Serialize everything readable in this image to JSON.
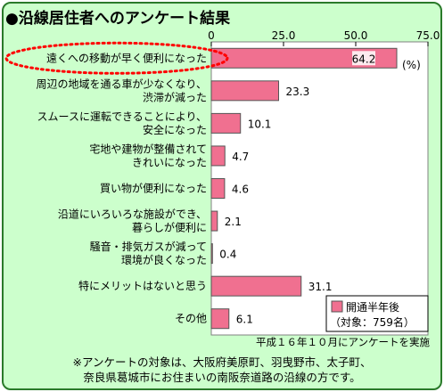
{
  "title": "●沿線居住者へのアンケート結果",
  "chart_data": {
    "type": "bar",
    "orientation": "horizontal",
    "categories": [
      [
        "遠くへの移動が早く便利になった"
      ],
      [
        "周辺の地域を通る車が少なくなり、",
        "渋滞が減った"
      ],
      [
        "スムースに運転できることにより、",
        "安全になった"
      ],
      [
        "宅地や建物が整備されて",
        "きれいになった"
      ],
      [
        "買い物が便利になった"
      ],
      [
        "沿道にいろいろな施設ができ、",
        "暮らしが便利に"
      ],
      [
        "騒音・排気ガスが減って",
        "環境が良くなった"
      ],
      [
        "特にメリットはないと思う"
      ],
      [
        "その他"
      ]
    ],
    "series": [
      {
        "name": "開通半年後",
        "values": [
          64.2,
          23.3,
          10.1,
          4.7,
          4.6,
          2.1,
          0.4,
          31.1,
          6.1
        ]
      }
    ],
    "value_labels": [
      "64.2",
      "23.3",
      "10.1",
      "4.7",
      "4.6",
      "2.1",
      "0.4",
      "31.1",
      "6.1"
    ],
    "xlim": [
      0,
      75
    ],
    "xticks": [
      0,
      25,
      50,
      75
    ],
    "xtick_labels": [
      "0",
      "25.0",
      "50.0",
      "75.0"
    ],
    "unit": "(%)",
    "legend": {
      "label": "開通半年後",
      "sub": "（対象：759名）",
      "placement": "bottom-right"
    },
    "highlighted_category_index": 0,
    "colors": {
      "bar": "#f07090",
      "highlight": "#ff0000",
      "plot_bg": "#ffffff",
      "frame": "#2a7a2a"
    },
    "grid": false
  },
  "source_note": "平成１６年１０月にアンケートを実施",
  "footnote": [
    "※アンケートの対象は、大阪府美原町、羽曳野市、太子町、",
    "奈良県葛城市にお住まいの南阪奈道路の沿線の方です。"
  ]
}
